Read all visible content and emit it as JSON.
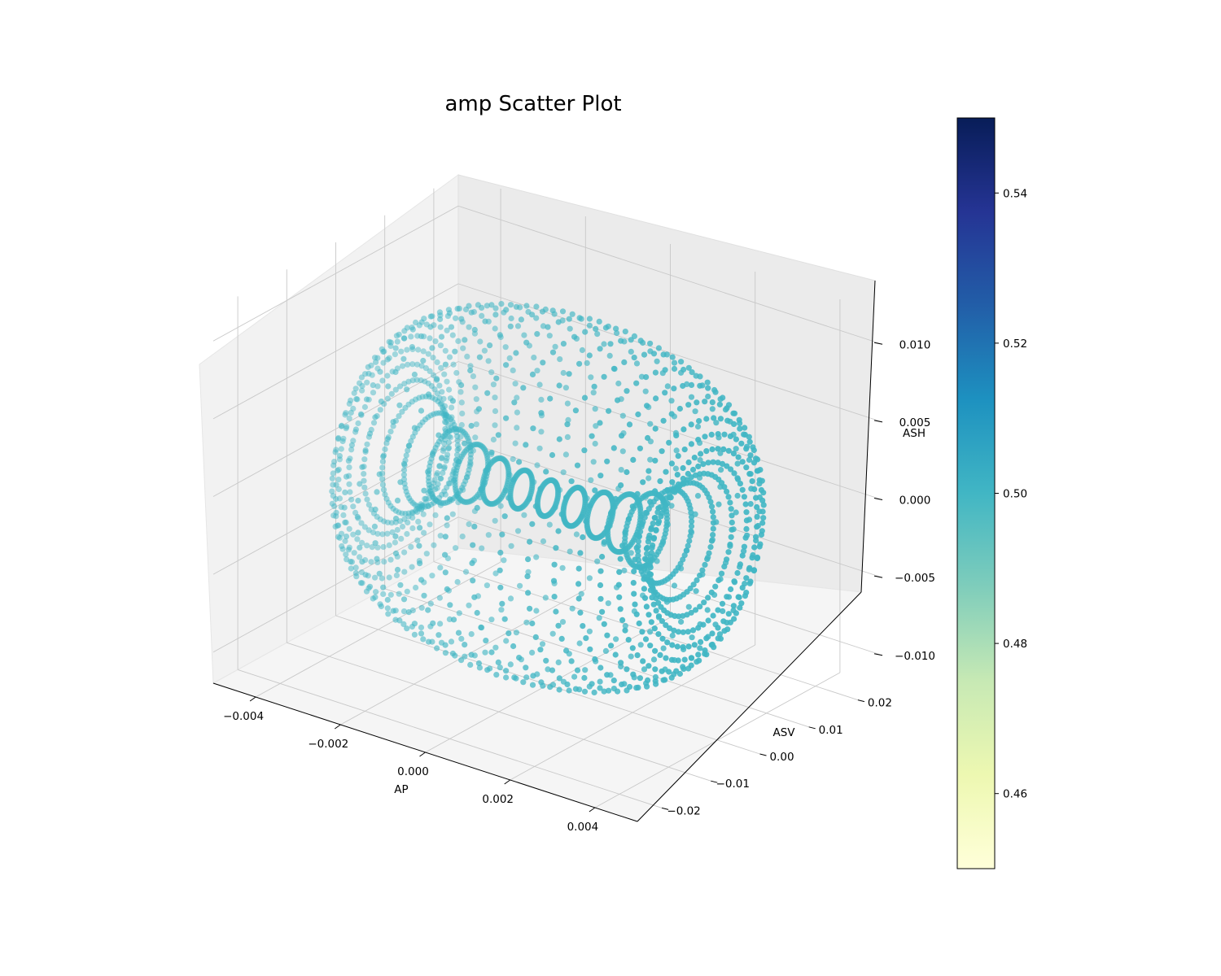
{
  "chart_data": {
    "type": "scatter",
    "title": "amp Scatter Plot",
    "projection": "3d",
    "xlabel": "AP",
    "ylabel": "ASV",
    "zlabel": "ASH",
    "x_ticks": [
      "−0.004",
      "−0.002",
      "0.000",
      "0.002",
      "0.004"
    ],
    "y_ticks": [
      "−0.02",
      "−0.01",
      "0.00",
      "0.01",
      "0.02"
    ],
    "z_ticks": [
      "−0.010",
      "−0.005",
      "0.000",
      "0.005",
      "0.010"
    ],
    "xlim": [
      -0.005,
      0.005
    ],
    "ylim": [
      -0.025,
      0.025
    ],
    "zlim": [
      -0.012,
      0.012
    ],
    "point_color": "#41b6c4",
    "grid": true,
    "colorbar": {
      "ticks": [
        "0.46",
        "0.48",
        "0.50",
        "0.52",
        "0.54"
      ],
      "range": [
        0.45,
        0.55
      ],
      "colormap": "YlGnBu",
      "stops": [
        "#ffffd9",
        "#edf8b1",
        "#c7e9b4",
        "#7fcdbb",
        "#41b6c4",
        "#1d91c0",
        "#225ea8",
        "#253494",
        "#081d58"
      ]
    },
    "series": [
      {
        "shape": "torus-like shell of points",
        "x_range": [
          -0.004,
          0.004
        ],
        "y_range": [
          -0.021,
          0.021
        ],
        "z_range": [
          -0.011,
          0.011
        ],
        "value": 0.5
      }
    ]
  }
}
